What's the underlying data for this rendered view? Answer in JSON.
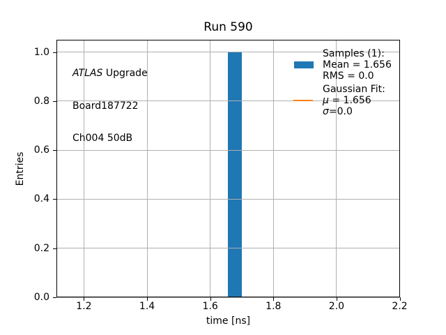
{
  "chart_data": {
    "type": "bar",
    "title": "Run 590",
    "xlabel": "time [ns]",
    "ylabel": "Entries",
    "xlim": [
      1.113,
      2.201
    ],
    "ylim": [
      0,
      1.05
    ],
    "xticks": [
      1.2,
      1.4,
      1.6,
      1.8,
      2.0,
      2.2
    ],
    "yticks": [
      0.0,
      0.2,
      0.4,
      0.6,
      0.8,
      1.0
    ],
    "grid": true,
    "grid_color": "#b0b0b0",
    "bar_color": "#1f77b4",
    "fit_color": "#ff7f0e",
    "bars": [
      {
        "x0": 1.656,
        "x1": 1.7,
        "height": 1.0
      }
    ],
    "stats": {
      "samples": 1,
      "mean": 1.656,
      "rms": 0.0,
      "gaussian_mu": 1.656,
      "gaussian_sigma": 0.0
    }
  },
  "annotation": {
    "brand": "ATLAS",
    "line1_rest": " Upgrade",
    "line2": "Board187722",
    "line3": "Ch004 50dB"
  },
  "legend": {
    "location": "upper right",
    "entries": [
      {
        "handle": "none",
        "text": "Samples (1):"
      },
      {
        "handle": "patch",
        "color": "#1f77b4",
        "text": "Mean = 1.656"
      },
      {
        "handle": "none",
        "text": "RMS = 0.0"
      },
      {
        "handle": "none",
        "text": "Gaussian Fit:",
        "gap_before": true
      },
      {
        "handle": "line",
        "color": "#ff7f0e",
        "sym": "μ",
        "text": " = 1.656"
      },
      {
        "handle": "none",
        "sym": "σ",
        "text": "=0.0"
      }
    ]
  }
}
